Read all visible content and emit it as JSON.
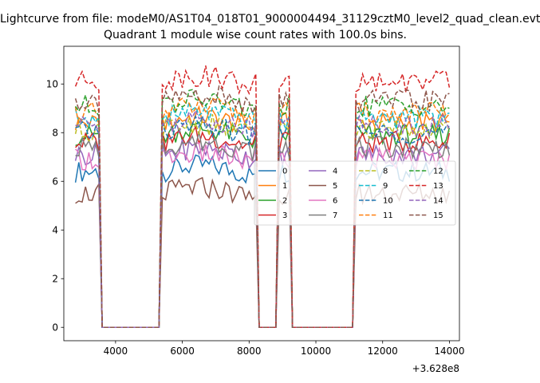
{
  "figure": {
    "suptitle": "Lightcurve from file: modeM0/AS1T04_018T01_9000004494_31129cztM0_level2_quad_clean.evt",
    "title": "Quadrant 1 module wise count rates with 100.0s bins.",
    "offset_label": "+3.628e8"
  },
  "chart_data": {
    "type": "line",
    "title": "Quadrant 1 module wise count rates with 100.0s bins.",
    "xlabel": "",
    "ylabel": "",
    "x_offset": 362800000,
    "xlim": [
      2450,
      14300
    ],
    "ylim": [
      -0.55,
      11.55
    ],
    "xticks": [
      4000,
      6000,
      8000,
      10000,
      12000,
      14000
    ],
    "xtick_labels": [
      "4000",
      "6000",
      "8000",
      "10000",
      "12000",
      "14000"
    ],
    "yticks": [
      0,
      2,
      4,
      6,
      8,
      10
    ],
    "ytick_labels": [
      "0",
      "2",
      "4",
      "6",
      "8",
      "10"
    ],
    "legend_placement": "center-right",
    "legend_columns": 4,
    "grid": false,
    "segments": [
      {
        "start": 2800,
        "end": 3500
      },
      {
        "start": 5400,
        "end": 8200
      },
      {
        "start": 8900,
        "end": 9200
      },
      {
        "start": 11200,
        "end": 14000
      }
    ],
    "series": [
      {
        "name": "0",
        "color": "#1f77b4",
        "dash": "solid",
        "level": 6.4
      },
      {
        "name": "1",
        "color": "#ff7f0e",
        "dash": "solid",
        "level": 8.4
      },
      {
        "name": "2",
        "color": "#2ca02c",
        "dash": "solid",
        "level": 7.9
      },
      {
        "name": "3",
        "color": "#d62728",
        "dash": "solid",
        "level": 7.6
      },
      {
        "name": "4",
        "color": "#9467bd",
        "dash": "solid",
        "level": 7.1
      },
      {
        "name": "5",
        "color": "#8c564b",
        "dash": "solid",
        "level": 5.5
      },
      {
        "name": "6",
        "color": "#e377c2",
        "dash": "solid",
        "level": 6.9
      },
      {
        "name": "7",
        "color": "#7f7f7f",
        "dash": "solid",
        "level": 7.4
      },
      {
        "name": "8",
        "color": "#bcbd22",
        "dash": "dashed",
        "level": 8.1
      },
      {
        "name": "9",
        "color": "#17becf",
        "dash": "dashed",
        "level": 8.6
      },
      {
        "name": "10",
        "color": "#1f77b4",
        "dash": "dashed",
        "level": 8.0
      },
      {
        "name": "11",
        "color": "#ff7f0e",
        "dash": "dashed",
        "level": 8.8
      },
      {
        "name": "12",
        "color": "#2ca02c",
        "dash": "dashed",
        "level": 9.1
      },
      {
        "name": "13",
        "color": "#d62728",
        "dash": "dashed",
        "level": 10.1
      },
      {
        "name": "14",
        "color": "#9467bd",
        "dash": "dashed",
        "level": 8.3
      },
      {
        "name": "15",
        "color": "#8c564b",
        "dash": "dashed",
        "level": 9.3
      }
    ]
  }
}
